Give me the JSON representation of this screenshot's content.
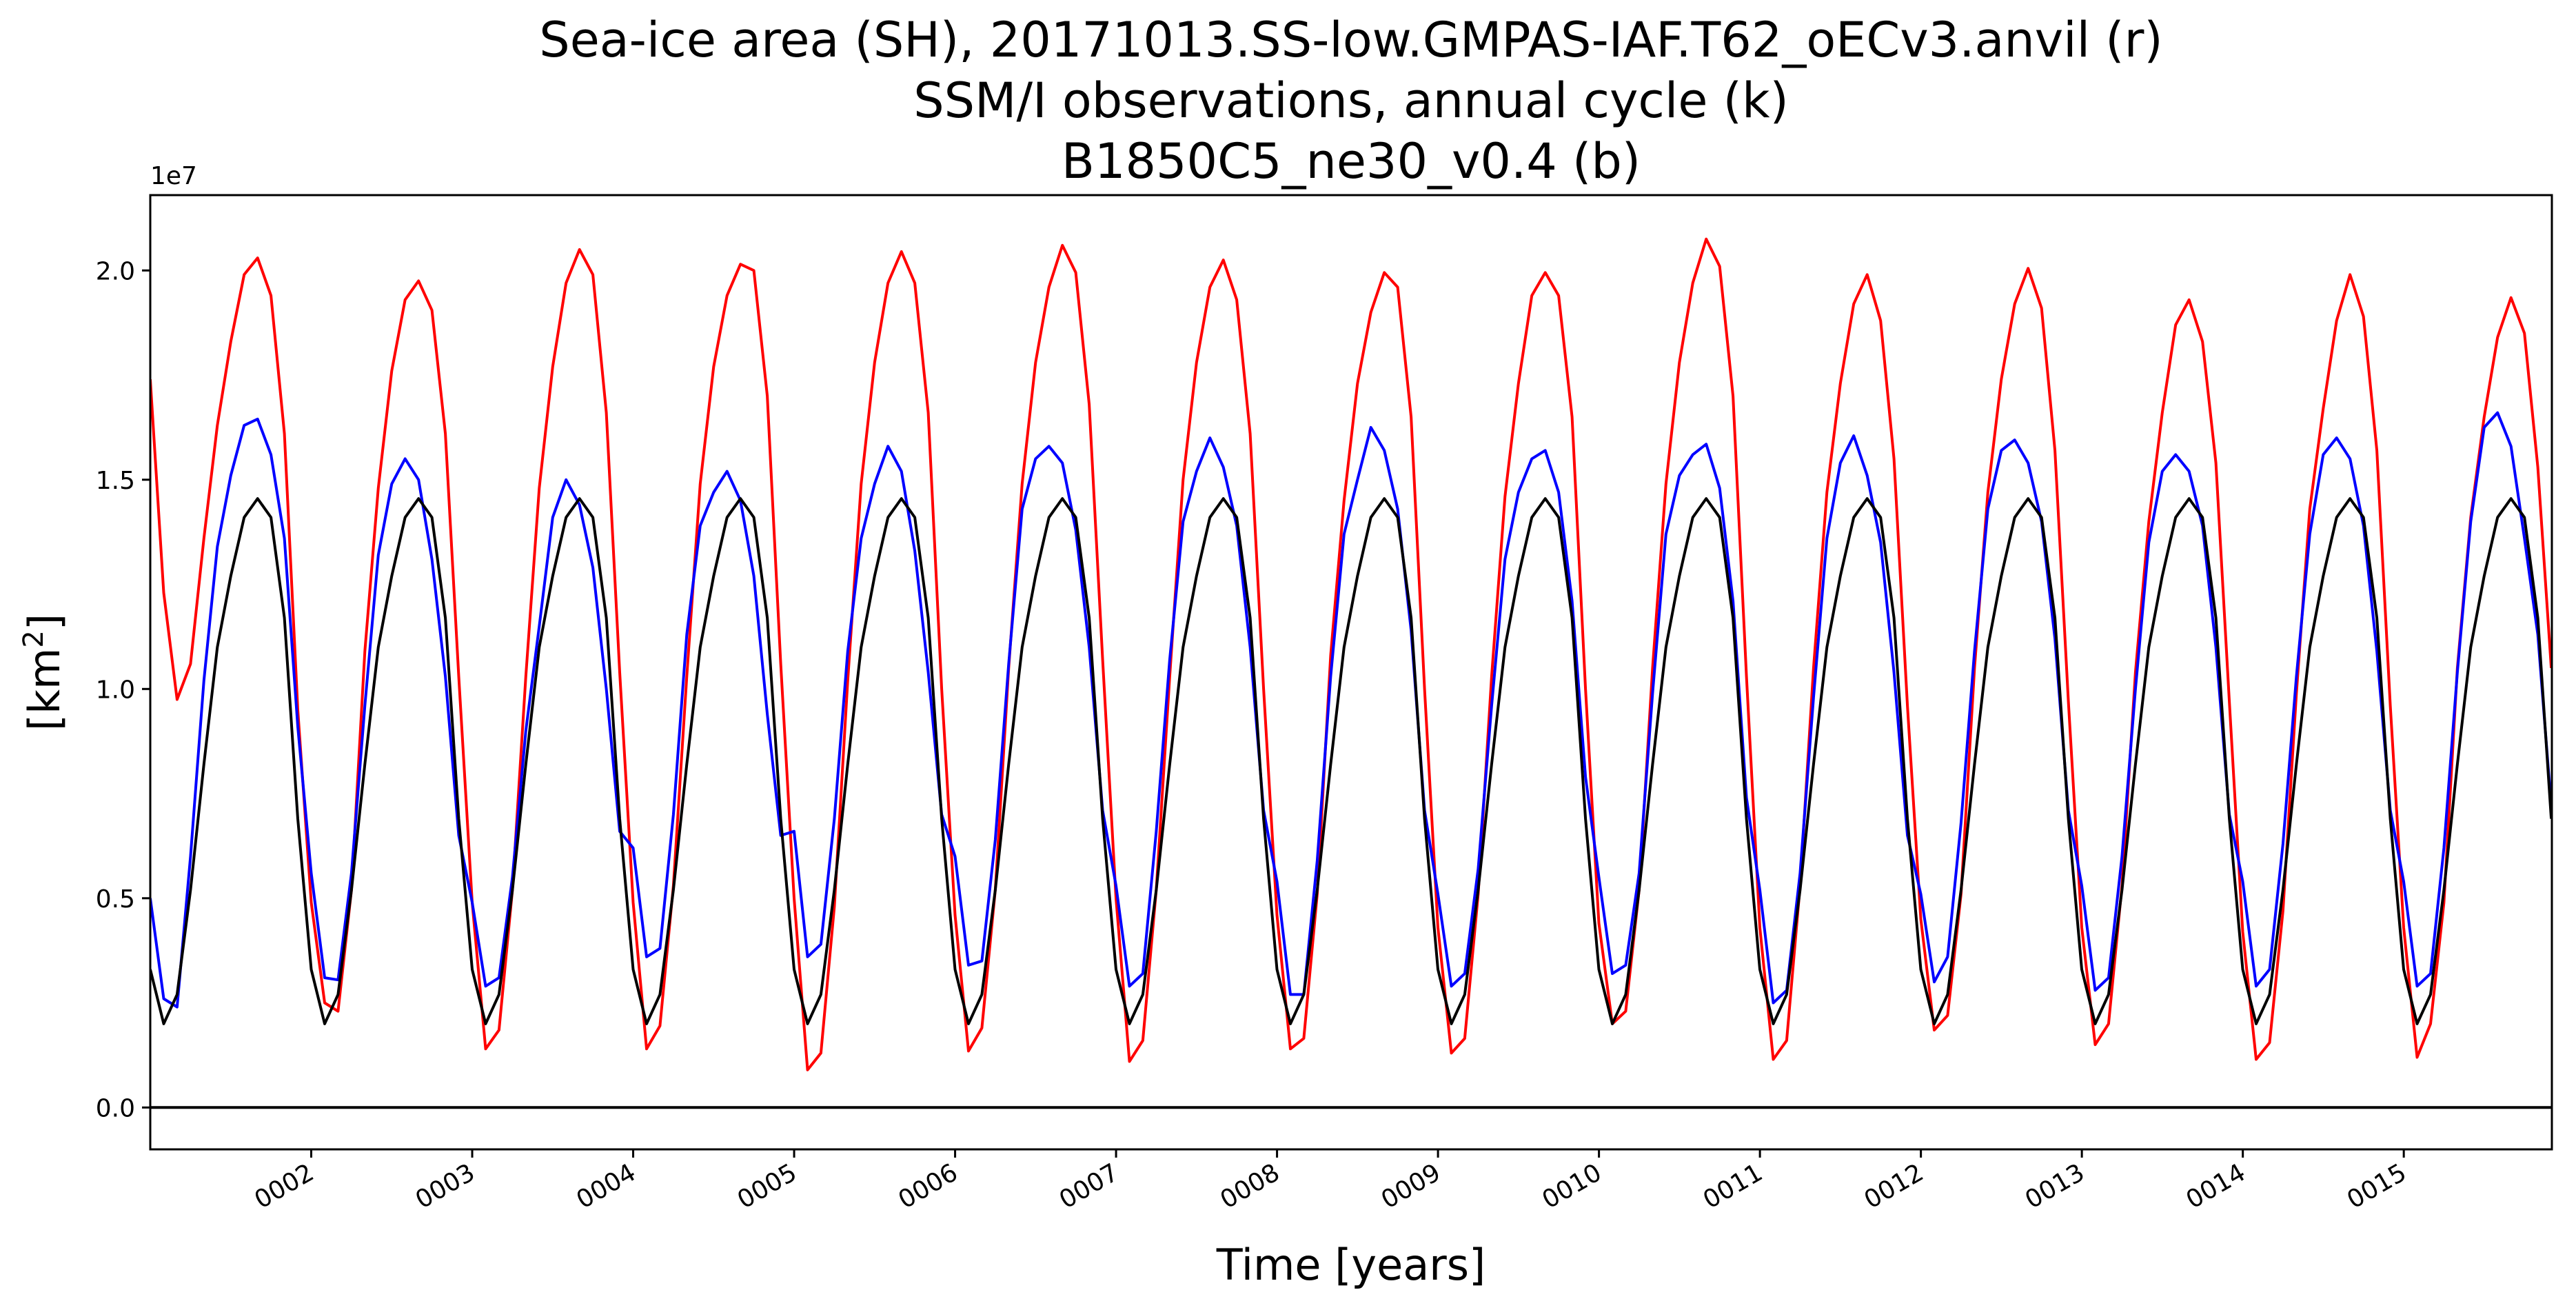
{
  "chart_data": {
    "type": "line",
    "title_lines": [
      "Sea-ice area (SH), 20171013.SS-low.GMPAS-IAF.T62_oECv3.anvil (r)",
      "SSM/I observations, annual cycle (k)",
      "B1850C5_ne30_v0.4 (b)"
    ],
    "xlabel": "Time [years]",
    "ylabel_main": "[km",
    "ylabel_sup": "2",
    "ylabel_close": "]",
    "y_offset_label": "1e7",
    "xlim": [
      1.0,
      15.92
    ],
    "ylim": [
      -1000000,
      21800000
    ],
    "y_ticks": [
      0,
      5000000,
      10000000,
      15000000,
      20000000
    ],
    "y_tick_labels": [
      "0.0",
      "0.5",
      "1.0",
      "1.5",
      "2.0"
    ],
    "x_ticks": [
      2,
      3,
      4,
      5,
      6,
      7,
      8,
      9,
      10,
      11,
      12,
      13,
      14,
      15
    ],
    "x_tick_labels": [
      "0002",
      "0003",
      "0004",
      "0005",
      "0006",
      "0007",
      "0008",
      "0009",
      "0010",
      "0011",
      "0012",
      "0013",
      "0014",
      "0015"
    ],
    "x_tick_rotation_deg": -30,
    "grid": false,
    "hline": {
      "y": 0,
      "color": "#000000"
    },
    "series": [
      {
        "color": "#ff0000",
        "start_year": 1.0,
        "month_step": 0.08333,
        "values": [
          17400000,
          12300000,
          9750000,
          10600000,
          13600000,
          16300000,
          18300000,
          19900000,
          20300000,
          19400000,
          16100000,
          9500000,
          4900000,
          2500000,
          2300000,
          5200000,
          10900000,
          14800000,
          17600000,
          19300000,
          19750000,
          19050000,
          16100000,
          10300000,
          4900000,
          1400000,
          1850000,
          5200000,
          10300000,
          14800000,
          17700000,
          19700000,
          20500000,
          19900000,
          16600000,
          10400000,
          4900000,
          1400000,
          1950000,
          5300000,
          10300000,
          14900000,
          17700000,
          19400000,
          20150000,
          20000000,
          17000000,
          10600000,
          5000000,
          900000,
          1300000,
          4800000,
          10200000,
          14900000,
          17800000,
          19700000,
          20450000,
          19700000,
          16600000,
          10000000,
          4600000,
          1350000,
          1900000,
          5200000,
          10500000,
          14900000,
          17800000,
          19600000,
          20600000,
          19950000,
          16800000,
          10700000,
          5000000,
          1100000,
          1600000,
          5200000,
          10300000,
          15000000,
          17800000,
          19600000,
          20250000,
          19300000,
          16100000,
          10000000,
          4600000,
          1400000,
          1650000,
          5100000,
          10800000,
          14500000,
          17300000,
          19000000,
          19950000,
          19600000,
          16500000,
          10000000,
          4300000,
          1300000,
          1650000,
          5100000,
          10300000,
          14600000,
          17300000,
          19400000,
          19950000,
          19400000,
          16500000,
          10000000,
          4400000,
          2000000,
          2300000,
          5200000,
          10500000,
          14900000,
          17800000,
          19700000,
          20750000,
          20100000,
          17000000,
          10300000,
          4300000,
          1150000,
          1600000,
          5300000,
          10500000,
          14700000,
          17300000,
          19200000,
          19900000,
          18800000,
          15500000,
          9600000,
          4500000,
          1850000,
          2200000,
          5100000,
          10500000,
          14700000,
          17400000,
          19200000,
          20050000,
          19100000,
          15700000,
          9700000,
          4300000,
          1500000,
          2000000,
          5300000,
          10400000,
          14000000,
          16600000,
          18700000,
          19300000,
          18300000,
          15400000,
          9700000,
          4200000,
          1150000,
          1550000,
          4700000,
          9900000,
          14300000,
          16700000,
          18800000,
          19900000,
          18900000,
          15700000,
          9600000,
          4300000,
          1200000,
          2000000,
          4900000,
          10500000,
          14100000,
          16500000,
          18400000,
          19350000,
          18500000,
          15300000,
          10500000
        ]
      },
      {
        "color": "#0000ff",
        "start_year": 1.0,
        "month_step": 0.08333,
        "values": [
          5000000,
          2600000,
          2400000,
          6000000,
          10200000,
          13400000,
          15100000,
          16300000,
          16450000,
          15600000,
          13600000,
          9100000,
          5600000,
          3100000,
          3050000,
          5600000,
          9600000,
          13200000,
          14900000,
          15500000,
          15000000,
          13100000,
          10300000,
          6500000,
          4900000,
          2900000,
          3100000,
          5500000,
          9000000,
          11500000,
          14100000,
          15000000,
          14400000,
          12900000,
          10000000,
          6600000,
          6200000,
          3600000,
          3800000,
          7000000,
          11300000,
          13900000,
          14700000,
          15200000,
          14500000,
          12700000,
          9400000,
          6500000,
          6600000,
          3600000,
          3900000,
          6900000,
          10900000,
          13600000,
          14900000,
          15800000,
          15200000,
          13300000,
          10400000,
          7000000,
          6000000,
          3400000,
          3500000,
          6400000,
          10600000,
          14300000,
          15500000,
          15800000,
          15400000,
          13800000,
          11000000,
          7100000,
          5300000,
          2900000,
          3200000,
          6600000,
          10700000,
          14000000,
          15200000,
          16000000,
          15300000,
          13900000,
          11000000,
          7100000,
          5400000,
          2700000,
          2700000,
          5900000,
          10300000,
          13700000,
          15000000,
          16250000,
          15700000,
          14300000,
          11400000,
          7100000,
          5100000,
          2900000,
          3200000,
          5700000,
          9600000,
          13100000,
          14700000,
          15500000,
          15700000,
          14700000,
          12100000,
          7900000,
          5500000,
          3200000,
          3400000,
          5600000,
          9900000,
          13700000,
          15100000,
          15600000,
          15850000,
          14800000,
          12100000,
          7400000,
          5200000,
          2500000,
          2800000,
          5600000,
          9800000,
          13600000,
          15400000,
          16050000,
          15100000,
          13500000,
          10400000,
          6500000,
          5100000,
          3000000,
          3600000,
          6800000,
          10900000,
          14300000,
          15700000,
          15950000,
          15400000,
          14000000,
          11200000,
          7100000,
          5300000,
          2800000,
          3100000,
          6000000,
          10000000,
          13500000,
          15200000,
          15600000,
          15200000,
          13900000,
          11000000,
          7000000,
          5400000,
          2900000,
          3300000,
          6300000,
          10300000,
          13700000,
          15600000,
          16000000,
          15500000,
          13900000,
          10900000,
          7100000,
          5400000,
          2900000,
          3200000,
          6200000,
          10400000,
          14000000,
          16250000,
          16600000,
          15800000,
          13600000,
          11300000,
          7200000
        ]
      },
      {
        "color": "#000000",
        "start_year": 1.0,
        "month_step": 0.08333,
        "values": [
          3300000,
          2000000,
          2700000,
          5200000,
          8200000,
          11000000,
          12700000,
          14100000,
          14550000,
          14100000,
          11700000,
          6900000,
          3300000,
          2000000,
          2700000,
          5200000,
          8200000,
          11000000,
          12700000,
          14100000,
          14550000,
          14100000,
          11700000,
          6900000,
          3300000,
          2000000,
          2700000,
          5200000,
          8200000,
          11000000,
          12700000,
          14100000,
          14550000,
          14100000,
          11700000,
          6900000,
          3300000,
          2000000,
          2700000,
          5200000,
          8200000,
          11000000,
          12700000,
          14100000,
          14550000,
          14100000,
          11700000,
          6900000,
          3300000,
          2000000,
          2700000,
          5200000,
          8200000,
          11000000,
          12700000,
          14100000,
          14550000,
          14100000,
          11700000,
          6900000,
          3300000,
          2000000,
          2700000,
          5200000,
          8200000,
          11000000,
          12700000,
          14100000,
          14550000,
          14100000,
          11700000,
          6900000,
          3300000,
          2000000,
          2700000,
          5200000,
          8200000,
          11000000,
          12700000,
          14100000,
          14550000,
          14100000,
          11700000,
          6900000,
          3300000,
          2000000,
          2700000,
          5200000,
          8200000,
          11000000,
          12700000,
          14100000,
          14550000,
          14100000,
          11700000,
          6900000,
          3300000,
          2000000,
          2700000,
          5200000,
          8200000,
          11000000,
          12700000,
          14100000,
          14550000,
          14100000,
          11700000,
          6900000,
          3300000,
          2000000,
          2700000,
          5200000,
          8200000,
          11000000,
          12700000,
          14100000,
          14550000,
          14100000,
          11700000,
          6900000,
          3300000,
          2000000,
          2700000,
          5200000,
          8200000,
          11000000,
          12700000,
          14100000,
          14550000,
          14100000,
          11700000,
          6900000,
          3300000,
          2000000,
          2700000,
          5200000,
          8200000,
          11000000,
          12700000,
          14100000,
          14550000,
          14100000,
          11700000,
          6900000,
          3300000,
          2000000,
          2700000,
          5200000,
          8200000,
          11000000,
          12700000,
          14100000,
          14550000,
          14100000,
          11700000,
          6900000,
          3300000,
          2000000,
          2700000,
          5200000,
          8200000,
          11000000,
          12700000,
          14100000,
          14550000,
          14100000,
          11700000,
          6900000,
          3300000,
          2000000,
          2700000,
          5200000,
          8200000,
          11000000,
          12700000,
          14100000,
          14550000,
          14100000,
          11700000,
          6900000
        ]
      }
    ]
  }
}
